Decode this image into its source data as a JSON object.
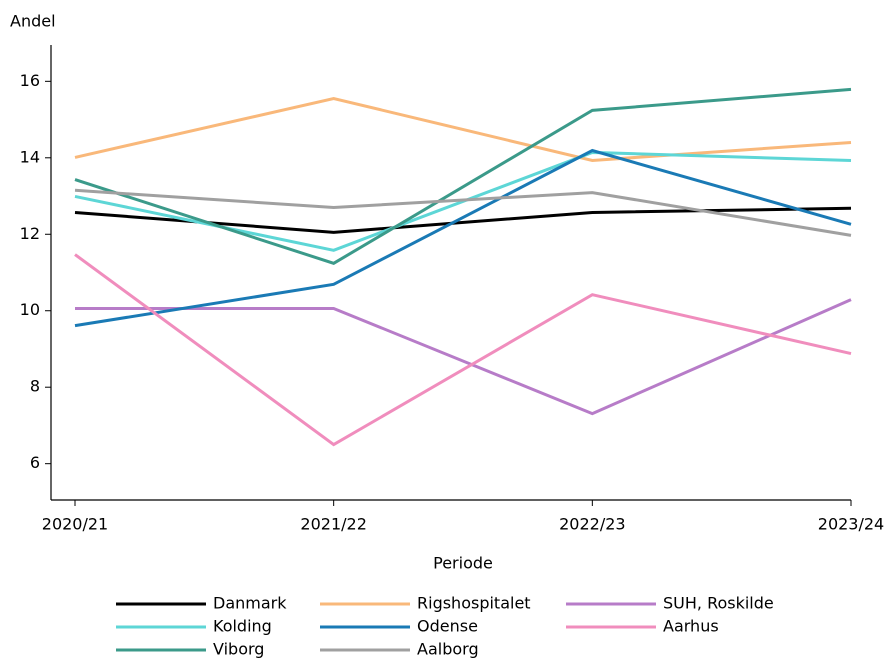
{
  "chart_data": {
    "type": "line",
    "y_label": "Andel",
    "x_label": "Periode",
    "categories": [
      "2020/21",
      "2021/22",
      "2022/23",
      "2023/24"
    ],
    "ylim": [
      5.05,
      16.95
    ],
    "yticks": [
      6,
      8,
      10,
      12,
      14,
      16
    ],
    "series": [
      {
        "name": "Danmark",
        "color": "#000000",
        "values": [
          12.57,
          12.05,
          12.57,
          12.68
        ]
      },
      {
        "name": "Rigshospitalet",
        "color": "#f9b87a",
        "values": [
          14.01,
          15.55,
          13.93,
          14.4
        ]
      },
      {
        "name": "SUH, Roskilde",
        "color": "#b77cc8",
        "values": [
          10.06,
          10.06,
          7.31,
          10.29
        ]
      },
      {
        "name": "Kolding",
        "color": "#5dd6d6",
        "values": [
          12.99,
          11.58,
          14.14,
          13.93
        ]
      },
      {
        "name": "Odense",
        "color": "#1a7ab5",
        "values": [
          9.61,
          10.69,
          14.19,
          12.26
        ]
      },
      {
        "name": "Aarhus",
        "color": "#f08dbd",
        "values": [
          11.47,
          6.5,
          10.42,
          8.88
        ]
      },
      {
        "name": "Viborg",
        "color": "#3b9a8a",
        "values": [
          13.43,
          11.24,
          15.24,
          15.79
        ]
      },
      {
        "name": "Aalborg",
        "color": "#a0a0a0",
        "values": [
          13.15,
          12.7,
          13.09,
          11.97
        ]
      }
    ]
  }
}
